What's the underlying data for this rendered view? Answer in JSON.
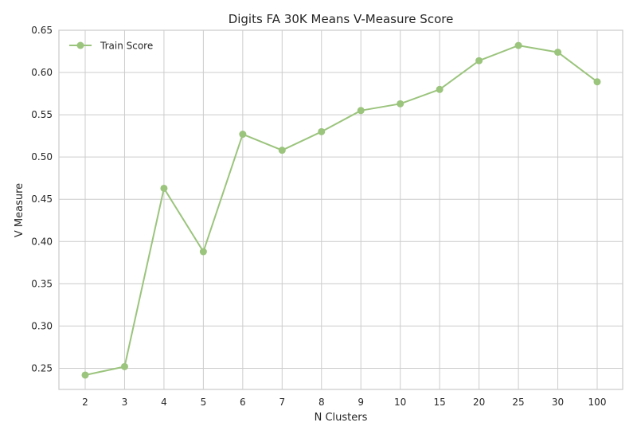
{
  "chart_data": {
    "type": "line",
    "title": "Digits FA 30K Means V-Measure Score",
    "xlabel": "N Clusters",
    "ylabel": "V Measure",
    "categories": [
      "2",
      "3",
      "4",
      "5",
      "6",
      "7",
      "8",
      "9",
      "10",
      "15",
      "20",
      "25",
      "30",
      "100"
    ],
    "series": [
      {
        "name": "Train Score",
        "values": [
          0.242,
          0.252,
          0.463,
          0.388,
          0.527,
          0.508,
          0.53,
          0.555,
          0.563,
          0.58,
          0.614,
          0.632,
          0.624,
          0.589
        ],
        "color": "#9bc47d"
      }
    ],
    "ylim": [
      0.225,
      0.65
    ],
    "yticks": [
      0.25,
      0.3,
      0.35,
      0.4,
      0.45,
      0.5,
      0.55,
      0.6,
      0.65
    ],
    "ytick_labels": [
      "0.25",
      "0.30",
      "0.35",
      "0.40",
      "0.45",
      "0.50",
      "0.55",
      "0.60",
      "0.65"
    ],
    "grid": true,
    "legend_position": "top-left"
  }
}
